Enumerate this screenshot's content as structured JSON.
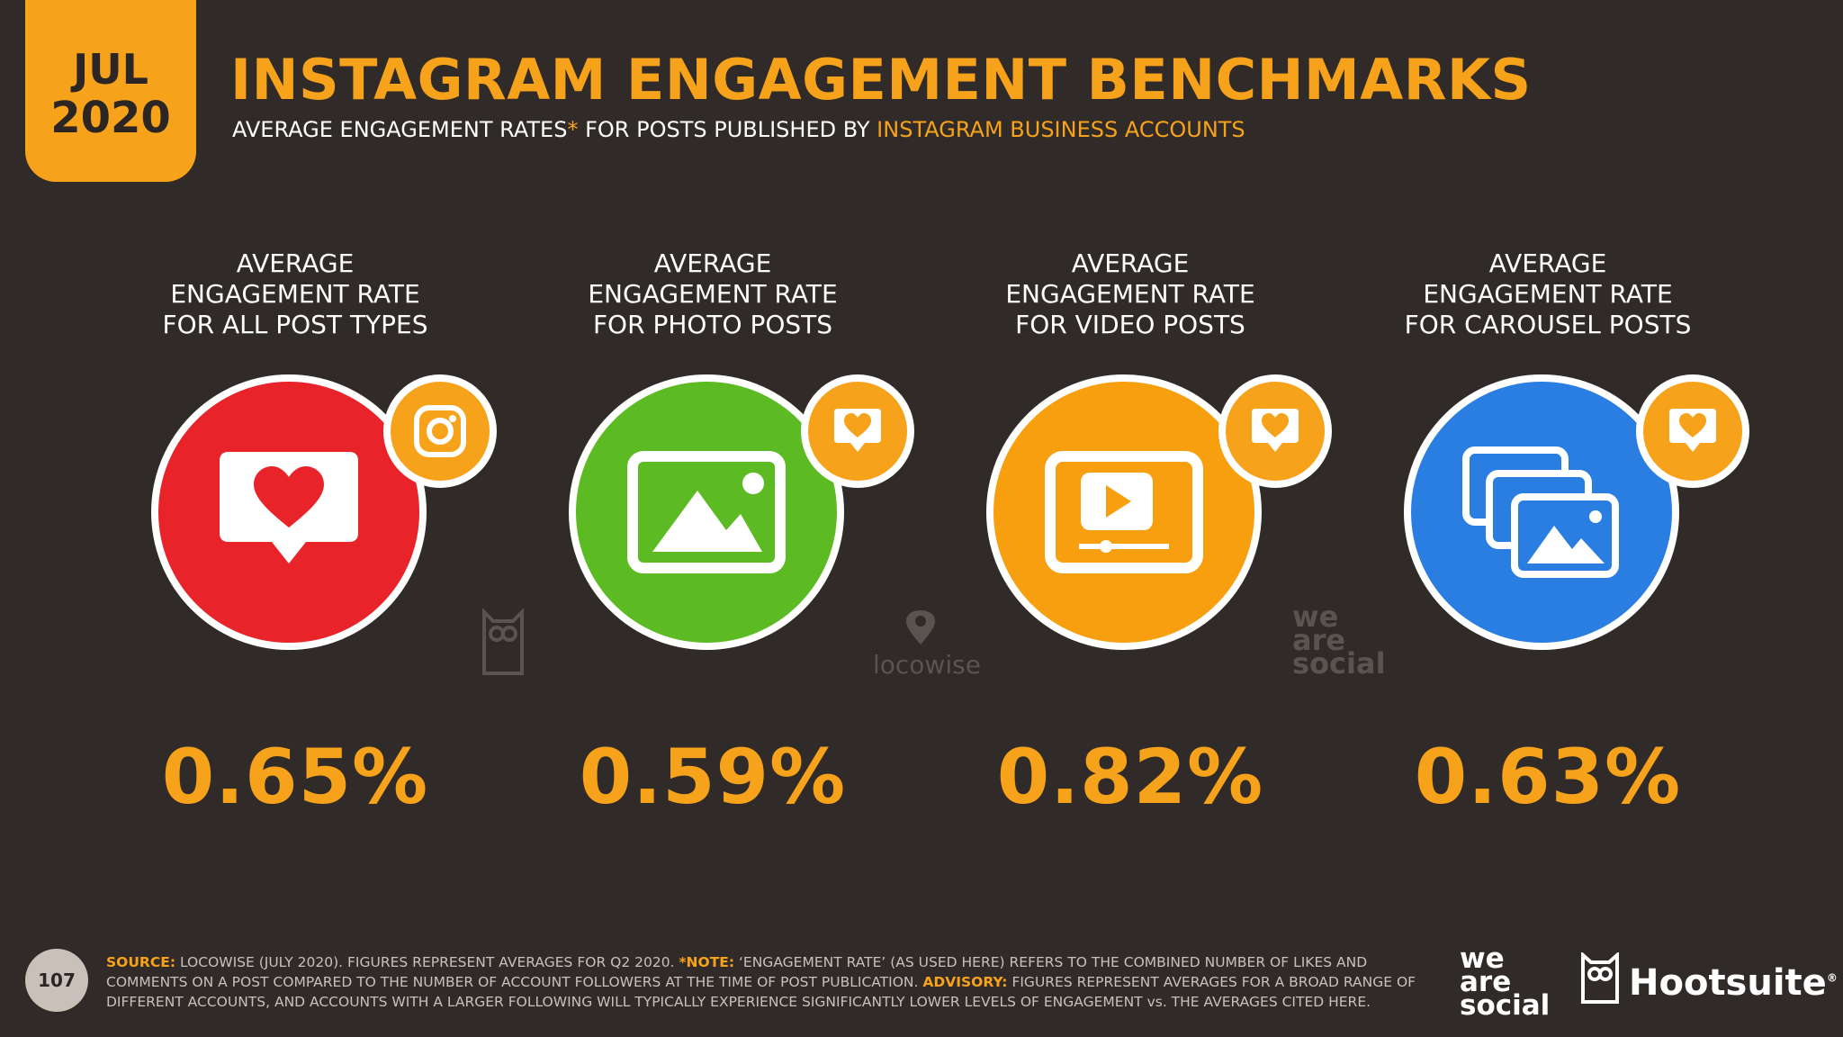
{
  "badge": {
    "month": "JUL",
    "year": "2020"
  },
  "header": {
    "title": "INSTAGRAM ENGAGEMENT BENCHMARKS",
    "subtitle_a": "AVERAGE ENGAGEMENT RATES",
    "subtitle_ast": "*",
    "subtitle_b": " FOR POSTS PUBLISHED BY ",
    "subtitle_c": "INSTAGRAM BUSINESS ACCOUNTS"
  },
  "metrics": [
    {
      "label_1": "AVERAGE",
      "label_2": "ENGAGEMENT RATE",
      "label_3": "FOR ALL POST TYPES",
      "value": "0.65%",
      "color": "#e8232a",
      "icon": "speech-heart-icon",
      "badge_icon": "instagram-icon"
    },
    {
      "label_1": "AVERAGE",
      "label_2": "ENGAGEMENT RATE",
      "label_3": "FOR PHOTO POSTS",
      "value": "0.59%",
      "color": "#5cbb23",
      "icon": "photo-icon",
      "badge_icon": "heart-bubble-icon"
    },
    {
      "label_1": "AVERAGE",
      "label_2": "ENGAGEMENT RATE",
      "label_3": "FOR VIDEO POSTS",
      "value": "0.82%",
      "color": "#f79f0f",
      "icon": "video-icon",
      "badge_icon": "heart-bubble-icon"
    },
    {
      "label_1": "AVERAGE",
      "label_2": "ENGAGEMENT RATE",
      "label_3": "FOR CAROUSEL POSTS",
      "value": "0.63%",
      "color": "#2a7ee2",
      "icon": "carousel-icon",
      "badge_icon": "heart-bubble-icon"
    }
  ],
  "watermarks": {
    "locowise": "locowise",
    "we": "we",
    "are": "are",
    "social": "social"
  },
  "footer": {
    "page_number": "107",
    "source_key": "SOURCE:",
    "source_text": " LOCOWISE (JULY 2020). FIGURES REPRESENT AVERAGES FOR Q2 2020. ",
    "note_key": "*NOTE:",
    "note_text": " ‘ENGAGEMENT RATE’ (AS USED HERE) REFERS TO THE COMBINED NUMBER OF LIKES AND COMMENTS ON A POST COMPARED TO THE NUMBER OF ACCOUNT FOLLOWERS AT THE TIME OF POST PUBLICATION. ",
    "advisory_key": "ADVISORY:",
    "advisory_text": " FIGURES REPRESENT AVERAGES FOR A BROAD RANGE OF DIFFERENT ACCOUNTS, AND ACCOUNTS WITH A LARGER FOLLOWING WILL TYPICALLY EXPERIENCE SIGNIFICANTLY LOWER LEVELS OF ENGAGEMENT vs. THE AVERAGES CITED HERE."
  },
  "logos": {
    "was_1": "we",
    "was_2": "are",
    "was_3": "social",
    "hootsuite": "Hootsuite",
    "hootsuite_mark": "®"
  },
  "colors": {
    "accent": "#f7a21b",
    "background": "#302b28"
  }
}
